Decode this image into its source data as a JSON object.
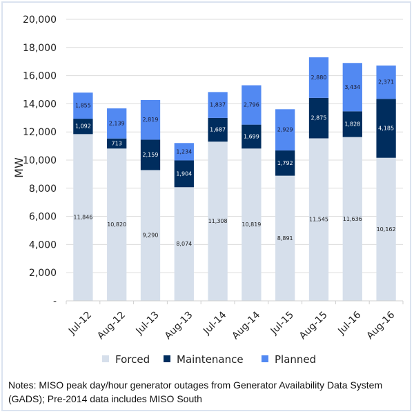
{
  "chart_data": {
    "type": "bar",
    "stacked": true,
    "title": "",
    "xlabel": "",
    "ylabel": "MW",
    "ylim": [
      0,
      20000
    ],
    "yticks": [
      0,
      2000,
      4000,
      6000,
      8000,
      10000,
      12000,
      14000,
      16000,
      18000,
      20000
    ],
    "ytick_labels": [
      "-",
      "2,000",
      "4,000",
      "6,000",
      "8,000",
      "10,000",
      "12,000",
      "14,000",
      "16,000",
      "18,000",
      "20,000"
    ],
    "grid": true,
    "legend_position": "bottom",
    "categories": [
      "Jul-12",
      "Aug-12",
      "Jul-13",
      "Aug-13",
      "Jul-14",
      "Aug-14",
      "Jul-15",
      "Aug-15",
      "Jul-16",
      "Aug-16"
    ],
    "series": [
      {
        "name": "Forced",
        "color": "#d6dfeb",
        "label_color": "#222222",
        "values": [
          11846,
          10820,
          9290,
          8074,
          11308,
          10819,
          8891,
          11545,
          11636,
          10162
        ]
      },
      {
        "name": "Maintenance",
        "color": "#002d5e",
        "label_color": "#ffffff",
        "values": [
          1092,
          713,
          2159,
          1904,
          1687,
          1699,
          1792,
          2875,
          1828,
          4185
        ]
      },
      {
        "name": "Planned",
        "color": "#5289f2",
        "label_color": "#1a1a2e",
        "values": [
          1855,
          2139,
          2819,
          1234,
          1837,
          2796,
          2929,
          2880,
          3434,
          2371
        ]
      }
    ]
  },
  "notes": "Notes: MISO peak day/hour generator outages from Generator Availability Data System (GADS); Pre-2014 data includes MISO South"
}
